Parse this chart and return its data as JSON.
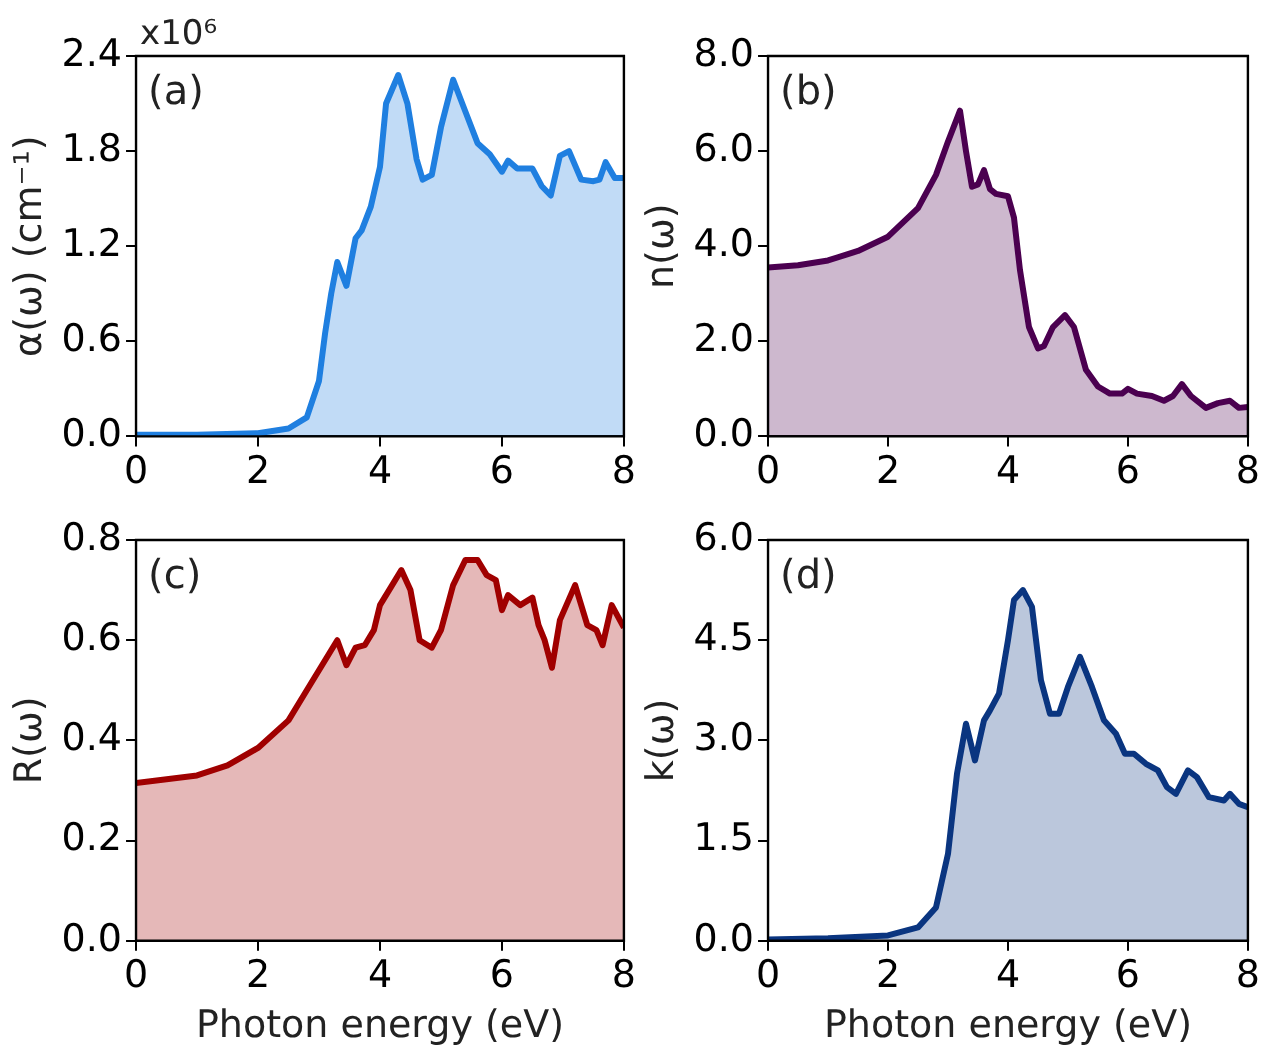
{
  "chart_data": [
    {
      "type": "area",
      "ylabel": "α(ω) (cm⁻¹)",
      "annotations": [
        "(a)",
        "x10⁶"
      ],
      "xlim": [
        0,
        8
      ],
      "xticks": [
        0,
        2,
        4,
        6,
        8
      ],
      "ylim": [
        0,
        2.4
      ],
      "yticks": [
        {
          "value": 0,
          "label": "0.0"
        },
        {
          "value": 0.6,
          "label": "0.6"
        },
        {
          "value": 1.2,
          "label": "1.2"
        },
        {
          "value": 1.8,
          "label": "1.8"
        },
        {
          "value": 2.4,
          "label": "2.4"
        }
      ],
      "grid": false,
      "legend": false,
      "series": [
        {
          "color": "#1f7fe0",
          "x": [
            0,
            1,
            2,
            2.5,
            2.8,
            3.0,
            3.1,
            3.2,
            3.3,
            3.45,
            3.6,
            3.7,
            3.85,
            4.0,
            4.1,
            4.3,
            4.45,
            4.6,
            4.7,
            4.85,
            5.0,
            5.2,
            5.4,
            5.6,
            5.8,
            6.0,
            6.1,
            6.25,
            6.5,
            6.65,
            6.8,
            6.95,
            7.1,
            7.3,
            7.5,
            7.6,
            7.7,
            7.85,
            8
          ],
          "values": [
            0.01,
            0.01,
            0.02,
            0.05,
            0.12,
            0.35,
            0.65,
            0.9,
            1.1,
            0.95,
            1.25,
            1.3,
            1.45,
            1.7,
            2.1,
            2.28,
            2.1,
            1.75,
            1.62,
            1.65,
            1.95,
            2.25,
            2.05,
            1.85,
            1.78,
            1.67,
            1.74,
            1.69,
            1.69,
            1.58,
            1.52,
            1.77,
            1.8,
            1.62,
            1.61,
            1.62,
            1.73,
            1.63,
            1.63
          ]
        }
      ]
    },
    {
      "type": "area",
      "ylabel": "n(ω)",
      "annotations": [
        "(b)"
      ],
      "xlim": [
        0,
        8
      ],
      "xticks": [
        0,
        2,
        4,
        6,
        8
      ],
      "ylim": [
        0,
        8
      ],
      "yticks": [
        {
          "value": 0,
          "label": "0.0"
        },
        {
          "value": 2,
          "label": "2.0"
        },
        {
          "value": 4,
          "label": "4.0"
        },
        {
          "value": 6,
          "label": "6.0"
        },
        {
          "value": 8,
          "label": "8.0"
        }
      ],
      "grid": false,
      "legend": false,
      "series": [
        {
          "color": "#4b0050",
          "x": [
            0,
            0.5,
            1,
            1.5,
            2,
            2.5,
            2.8,
            3.0,
            3.2,
            3.3,
            3.4,
            3.5,
            3.6,
            3.7,
            3.8,
            4.0,
            4.1,
            4.2,
            4.35,
            4.5,
            4.6,
            4.75,
            4.95,
            5.1,
            5.3,
            5.5,
            5.7,
            5.9,
            6.0,
            6.15,
            6.4,
            6.6,
            6.75,
            6.9,
            7.05,
            7.3,
            7.5,
            7.7,
            7.85,
            8
          ],
          "values": [
            3.55,
            3.6,
            3.7,
            3.9,
            4.2,
            4.8,
            5.5,
            6.2,
            6.85,
            6.0,
            5.25,
            5.3,
            5.6,
            5.2,
            5.1,
            5.05,
            4.6,
            3.5,
            2.3,
            1.85,
            1.9,
            2.3,
            2.55,
            2.3,
            1.4,
            1.05,
            0.9,
            0.9,
            1.0,
            0.9,
            0.85,
            0.75,
            0.85,
            1.1,
            0.85,
            0.6,
            0.7,
            0.75,
            0.6,
            0.62
          ]
        }
      ]
    },
    {
      "type": "area",
      "xlabel": "Photon energy (eV)",
      "ylabel": "R(ω)",
      "annotations": [
        "(c)"
      ],
      "xlim": [
        0,
        8
      ],
      "xticks": [
        0,
        2,
        4,
        6,
        8
      ],
      "ylim": [
        0,
        0.8
      ],
      "yticks": [
        {
          "value": 0,
          "label": "0.0"
        },
        {
          "value": 0.2,
          "label": "0.2"
        },
        {
          "value": 0.4,
          "label": "0.4"
        },
        {
          "value": 0.6,
          "label": "0.6"
        },
        {
          "value": 0.8,
          "label": "0.8"
        }
      ],
      "grid": false,
      "legend": false,
      "series": [
        {
          "color": "#a00000",
          "x": [
            0,
            1,
            1.5,
            2,
            2.5,
            2.8,
            3.0,
            3.3,
            3.45,
            3.6,
            3.75,
            3.9,
            4.0,
            4.2,
            4.35,
            4.5,
            4.65,
            4.85,
            5.0,
            5.2,
            5.4,
            5.6,
            5.75,
            5.9,
            6.0,
            6.1,
            6.3,
            6.5,
            6.6,
            6.7,
            6.82,
            6.95,
            7.2,
            7.4,
            7.55,
            7.65,
            7.8,
            8
          ],
          "values": [
            0.315,
            0.33,
            0.35,
            0.385,
            0.44,
            0.5,
            0.54,
            0.6,
            0.55,
            0.585,
            0.59,
            0.62,
            0.67,
            0.71,
            0.74,
            0.7,
            0.6,
            0.585,
            0.62,
            0.71,
            0.76,
            0.76,
            0.73,
            0.72,
            0.66,
            0.69,
            0.67,
            0.685,
            0.63,
            0.6,
            0.545,
            0.64,
            0.71,
            0.63,
            0.62,
            0.59,
            0.67,
            0.625
          ]
        }
      ]
    },
    {
      "type": "area",
      "xlabel": "Photon energy (eV)",
      "ylabel": "k(ω)",
      "annotations": [
        "(d)"
      ],
      "xlim": [
        0,
        8
      ],
      "xticks": [
        0,
        2,
        4,
        6,
        8
      ],
      "ylim": [
        0,
        6
      ],
      "yticks": [
        {
          "value": 0,
          "label": "0.0"
        },
        {
          "value": 1.5,
          "label": "1.5"
        },
        {
          "value": 3,
          "label": "3.0"
        },
        {
          "value": 4.5,
          "label": "4.5"
        },
        {
          "value": 6,
          "label": "6.0"
        }
      ],
      "grid": false,
      "legend": false,
      "series": [
        {
          "color": "#0a3580",
          "x": [
            0,
            1,
            2,
            2.5,
            2.8,
            3.0,
            3.15,
            3.3,
            3.45,
            3.6,
            3.7,
            3.85,
            4.0,
            4.1,
            4.25,
            4.4,
            4.55,
            4.7,
            4.85,
            5.0,
            5.2,
            5.4,
            5.6,
            5.8,
            5.95,
            6.1,
            6.3,
            6.5,
            6.65,
            6.8,
            7.0,
            7.15,
            7.35,
            7.6,
            7.7,
            7.85,
            8
          ],
          "values": [
            0.02,
            0.04,
            0.08,
            0.2,
            0.5,
            1.3,
            2.5,
            3.25,
            2.7,
            3.3,
            3.45,
            3.7,
            4.5,
            5.1,
            5.25,
            5.0,
            3.9,
            3.4,
            3.4,
            3.8,
            4.25,
            3.8,
            3.3,
            3.1,
            2.8,
            2.8,
            2.65,
            2.55,
            2.3,
            2.2,
            2.55,
            2.45,
            2.15,
            2.1,
            2.2,
            2.05,
            2.0
          ]
        }
      ]
    }
  ]
}
